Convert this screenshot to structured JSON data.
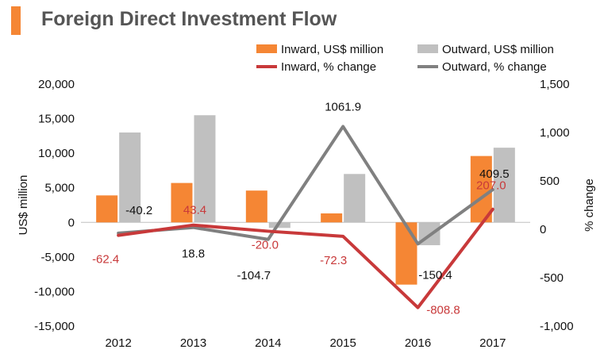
{
  "title": "Foreign Direct Investment Flow",
  "colors": {
    "title_accent": "#F58634",
    "title_text": "#555555",
    "inward_bar": "#F58634",
    "outward_bar": "#C0C0C0",
    "inward_line": "#C8393A",
    "outward_line": "#808080",
    "axis_text": "#111111"
  },
  "chart_data": {
    "type": "bar",
    "categories": [
      "2012",
      "2013",
      "2014",
      "2015",
      "2016",
      "2017"
    ],
    "series": [
      {
        "name": "Inward, US$ million",
        "kind": "bar",
        "axis": "left",
        "values": [
          3900,
          5700,
          4600,
          1300,
          -9000,
          9600
        ]
      },
      {
        "name": "Outward, US$ million",
        "kind": "bar",
        "axis": "left",
        "values": [
          13000,
          15500,
          -800,
          7000,
          -3300,
          10800
        ]
      },
      {
        "name": "Inward, % change",
        "kind": "line",
        "axis": "right",
        "values": [
          -62.4,
          43.4,
          -20.0,
          -72.3,
          -808.8,
          207.0
        ],
        "labels": [
          "-62.4",
          "43.4",
          "-20.0",
          "-72.3",
          "-808.8",
          "207.0"
        ]
      },
      {
        "name": "Outward, % change",
        "kind": "line",
        "axis": "right",
        "values": [
          -40.2,
          18.8,
          -104.7,
          1061.9,
          -150.4,
          409.5
        ],
        "labels": [
          "-40.2",
          "18.8",
          "-104.7",
          "1061.9",
          "-150.4",
          "409.5"
        ]
      }
    ],
    "ylabel": "US$ million",
    "y2label": "% change",
    "ylim": [
      -15000,
      20000
    ],
    "y2lim": [
      -1000,
      1500
    ],
    "yticks": [
      -15000,
      -10000,
      -5000,
      0,
      5000,
      10000,
      15000,
      20000
    ],
    "yticklabels": [
      "-15,000",
      "-10,000",
      "-5,000",
      "0",
      "5,000",
      "10,000",
      "15,000",
      "20,000"
    ],
    "y2ticks": [
      -1000,
      -500,
      0,
      500,
      1000,
      1500
    ],
    "y2ticklabels": [
      "-1,000",
      "-500",
      "0",
      "500",
      "1,000",
      "1,500"
    ],
    "legend_position": "top",
    "grid": false
  }
}
